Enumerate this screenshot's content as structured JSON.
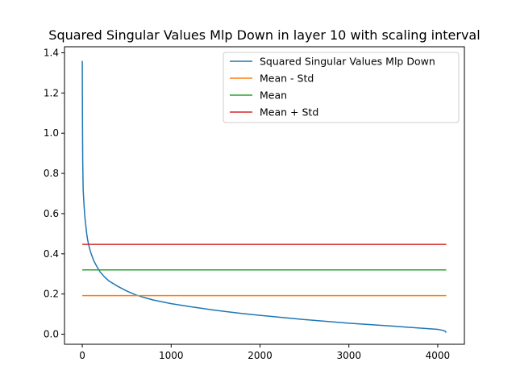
{
  "chart_data": {
    "type": "line",
    "title": "Squared Singular Values Mlp Down in layer 10 with scaling interval",
    "xlabel": "",
    "ylabel": "",
    "xlim": [
      -200,
      4300
    ],
    "ylim": [
      -0.05,
      1.43
    ],
    "x_ticks": [
      0,
      1000,
      2000,
      3000,
      4000
    ],
    "y_ticks": [
      0.0,
      0.2,
      0.4,
      0.6,
      0.8,
      1.0,
      1.2,
      1.4
    ],
    "x_tick_labels": [
      "0",
      "1000",
      "2000",
      "3000",
      "4000"
    ],
    "y_tick_labels": [
      "0.0",
      "0.2",
      "0.4",
      "0.6",
      "0.8",
      "1.0",
      "1.2",
      "1.4"
    ],
    "grid": false,
    "legend_position": "top-right",
    "series": [
      {
        "name": "Squared Singular Values Mlp Down",
        "color": "#1f77b4",
        "x": [
          0,
          2,
          5,
          10,
          20,
          30,
          40,
          50,
          60,
          80,
          100,
          130,
          160,
          200,
          250,
          300,
          400,
          500,
          600,
          700,
          800,
          1000,
          1200,
          1500,
          1800,
          2000,
          2500,
          3000,
          3500,
          4000,
          4050,
          4080,
          4096
        ],
        "y": [
          1.36,
          1.1,
          0.86,
          0.72,
          0.64,
          0.58,
          0.54,
          0.5,
          0.47,
          0.43,
          0.4,
          0.365,
          0.34,
          0.31,
          0.285,
          0.265,
          0.238,
          0.215,
          0.196,
          0.182,
          0.17,
          0.152,
          0.138,
          0.119,
          0.103,
          0.094,
          0.073,
          0.055,
          0.04,
          0.024,
          0.02,
          0.016,
          0.008
        ]
      },
      {
        "name": "Mean - Std",
        "color": "#ff7f0e",
        "x": [
          0,
          4096
        ],
        "y": [
          0.192,
          0.192
        ]
      },
      {
        "name": "Mean",
        "color": "#2ca02c",
        "x": [
          0,
          4096
        ],
        "y": [
          0.32,
          0.32
        ]
      },
      {
        "name": "Mean + Std",
        "color": "#d62728",
        "x": [
          0,
          4096
        ],
        "y": [
          0.447,
          0.447
        ]
      }
    ]
  }
}
